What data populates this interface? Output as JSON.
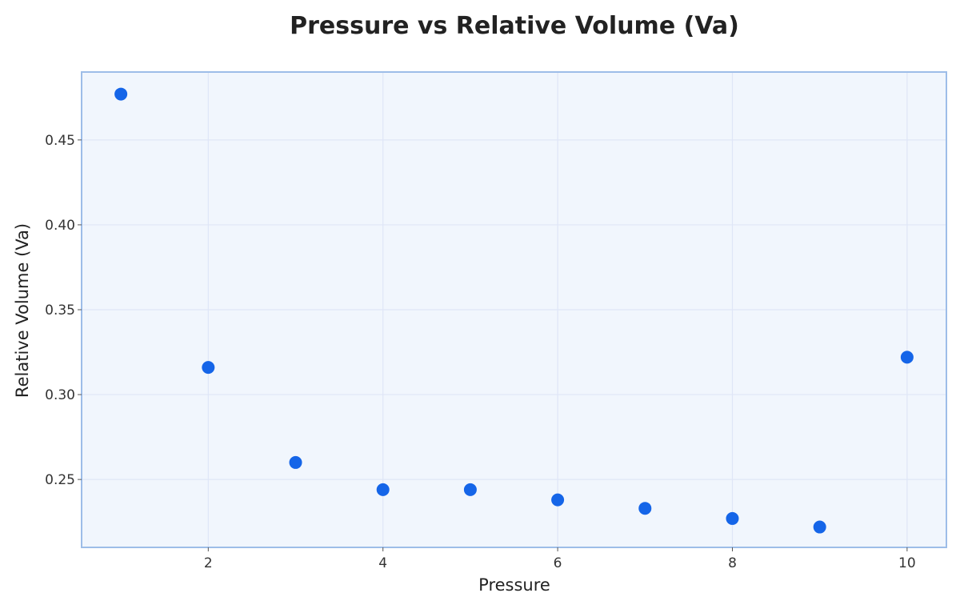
{
  "chart_data": {
    "type": "scatter",
    "title": "Pressure vs Relative Volume (Va)",
    "xlabel": "Pressure",
    "ylabel": "Relative Volume (Va)",
    "xlim": [
      0.55,
      10.45
    ],
    "ylim": [
      0.21,
      0.49
    ],
    "x_ticks": [
      2,
      4,
      6,
      8,
      10
    ],
    "x_tick_labels": [
      "2",
      "4",
      "6",
      "8",
      "10"
    ],
    "y_ticks": [
      0.25,
      0.3,
      0.35,
      0.4,
      0.45
    ],
    "y_tick_labels": [
      "0.25",
      "0.30",
      "0.35",
      "0.40",
      "0.45"
    ],
    "grid": true,
    "series": [
      {
        "x": [
          1,
          2,
          3,
          4,
          5,
          6,
          7,
          8,
          9,
          10
        ],
        "y": [
          0.477,
          0.316,
          0.26,
          0.244,
          0.244,
          0.238,
          0.233,
          0.227,
          0.222,
          0.322
        ]
      }
    ],
    "colors": {
      "marker": "#1565e8",
      "plot_background": "#f1f6fd",
      "plot_border": "#9dbde8"
    }
  }
}
